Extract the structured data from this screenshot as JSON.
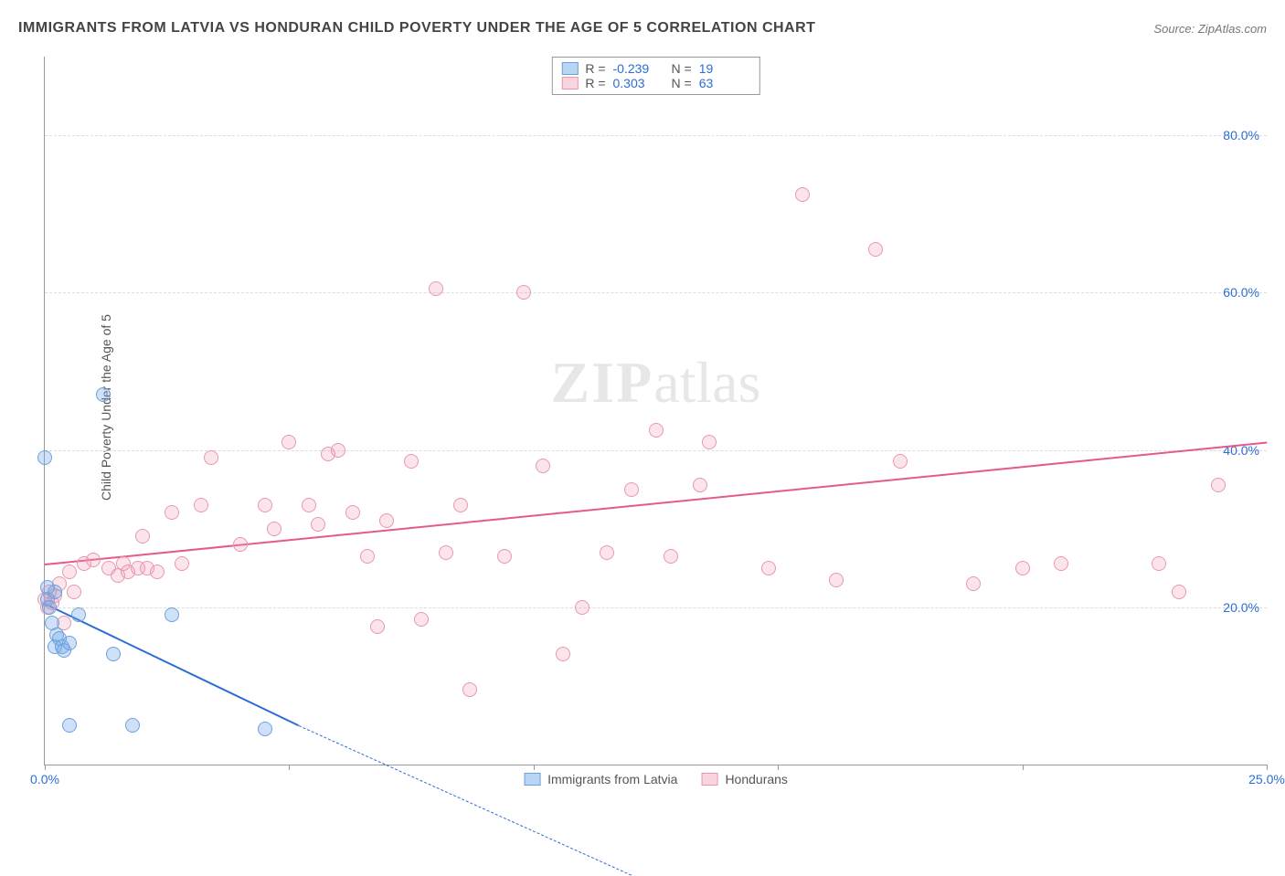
{
  "title": "IMMIGRANTS FROM LATVIA VS HONDURAN CHILD POVERTY UNDER THE AGE OF 5 CORRELATION CHART",
  "source": "Source: ZipAtlas.com",
  "ylabel": "Child Poverty Under the Age of 5",
  "watermark_a": "ZIP",
  "watermark_b": "atlas",
  "chart": {
    "type": "scatter",
    "xlim": [
      0,
      25
    ],
    "ylim": [
      0,
      90
    ],
    "background_color": "#ffffff",
    "grid_color": "#dddddd",
    "axis_color": "#999999",
    "tick_color": "#2b6dd6",
    "tick_fontsize": 14,
    "label_fontsize": 14,
    "marker_radius": 8,
    "x_ticks": [
      0,
      5,
      10,
      15,
      20,
      25
    ],
    "x_tick_labels": [
      "0.0%",
      "",
      "",
      "",
      "",
      "25.0%"
    ],
    "y_ticks": [
      20,
      40,
      60,
      80
    ],
    "y_tick_labels": [
      "20.0%",
      "40.0%",
      "60.0%",
      "80.0%"
    ],
    "series": [
      {
        "key": "latvia",
        "label": "Immigrants from Latvia",
        "marker_fill": "rgba(118,169,231,0.35)",
        "marker_stroke": "#6da0df",
        "trend_color": "#2b6dd6",
        "R": "-0.239",
        "N": "19",
        "trend": {
          "x1": 0,
          "y1": 20.5,
          "x2": 5.2,
          "y2": 5.0,
          "dash_from_x": 5.2,
          "dash_to_x": 12.0,
          "dash_to_y": -14
        },
        "points": [
          [
            0.0,
            39.0
          ],
          [
            0.05,
            21.0
          ],
          [
            0.1,
            20.0
          ],
          [
            0.15,
            18.0
          ],
          [
            0.2,
            22.0
          ],
          [
            0.2,
            15.0
          ],
          [
            0.25,
            16.5
          ],
          [
            0.3,
            16.0
          ],
          [
            0.35,
            15.0
          ],
          [
            0.4,
            14.5
          ],
          [
            0.5,
            15.5
          ],
          [
            0.5,
            5.0
          ],
          [
            0.7,
            19.0
          ],
          [
            1.2,
            47.0
          ],
          [
            1.4,
            14.0
          ],
          [
            1.8,
            5.0
          ],
          [
            2.6,
            19.0
          ],
          [
            4.5,
            4.5
          ],
          [
            0.05,
            22.5
          ]
        ]
      },
      {
        "key": "hondurans",
        "label": "Hondurans",
        "marker_fill": "rgba(240,150,175,0.25)",
        "marker_stroke": "#e897af",
        "trend_color": "#e65a8a",
        "R": "0.303",
        "N": "63",
        "trend": {
          "x1": 0,
          "y1": 25.5,
          "x2": 25,
          "y2": 41.0
        },
        "points": [
          [
            0.0,
            21.0
          ],
          [
            0.05,
            20.0
          ],
          [
            0.1,
            22.0
          ],
          [
            0.15,
            20.5
          ],
          [
            0.2,
            21.5
          ],
          [
            0.3,
            23.0
          ],
          [
            0.4,
            18.0
          ],
          [
            0.5,
            24.5
          ],
          [
            0.6,
            22.0
          ],
          [
            0.8,
            25.5
          ],
          [
            1.0,
            26.0
          ],
          [
            1.3,
            25.0
          ],
          [
            1.5,
            24.0
          ],
          [
            1.6,
            25.5
          ],
          [
            1.7,
            24.5
          ],
          [
            1.9,
            25.0
          ],
          [
            2.0,
            29.0
          ],
          [
            2.1,
            25.0
          ],
          [
            2.3,
            24.5
          ],
          [
            2.6,
            32.0
          ],
          [
            2.8,
            25.5
          ],
          [
            3.2,
            33.0
          ],
          [
            3.4,
            39.0
          ],
          [
            4.0,
            28.0
          ],
          [
            4.5,
            33.0
          ],
          [
            4.7,
            30.0
          ],
          [
            5.0,
            41.0
          ],
          [
            5.4,
            33.0
          ],
          [
            5.6,
            30.5
          ],
          [
            5.8,
            39.5
          ],
          [
            6.0,
            40.0
          ],
          [
            6.3,
            32.0
          ],
          [
            6.6,
            26.5
          ],
          [
            6.8,
            17.5
          ],
          [
            7.0,
            31.0
          ],
          [
            7.5,
            38.5
          ],
          [
            7.7,
            18.5
          ],
          [
            8.0,
            60.5
          ],
          [
            8.2,
            27.0
          ],
          [
            8.5,
            33.0
          ],
          [
            8.7,
            9.5
          ],
          [
            9.4,
            26.5
          ],
          [
            9.8,
            60.0
          ],
          [
            10.2,
            38.0
          ],
          [
            10.6,
            14.0
          ],
          [
            11.0,
            20.0
          ],
          [
            11.5,
            27.0
          ],
          [
            12.0,
            35.0
          ],
          [
            12.5,
            42.5
          ],
          [
            12.8,
            26.5
          ],
          [
            13.4,
            35.5
          ],
          [
            13.6,
            41.0
          ],
          [
            14.8,
            25.0
          ],
          [
            15.5,
            72.5
          ],
          [
            16.2,
            23.5
          ],
          [
            17.0,
            65.5
          ],
          [
            17.5,
            38.5
          ],
          [
            19.0,
            23.0
          ],
          [
            20.0,
            25.0
          ],
          [
            20.8,
            25.5
          ],
          [
            22.8,
            25.5
          ],
          [
            24.0,
            35.5
          ],
          [
            23.2,
            22.0
          ]
        ]
      }
    ]
  }
}
